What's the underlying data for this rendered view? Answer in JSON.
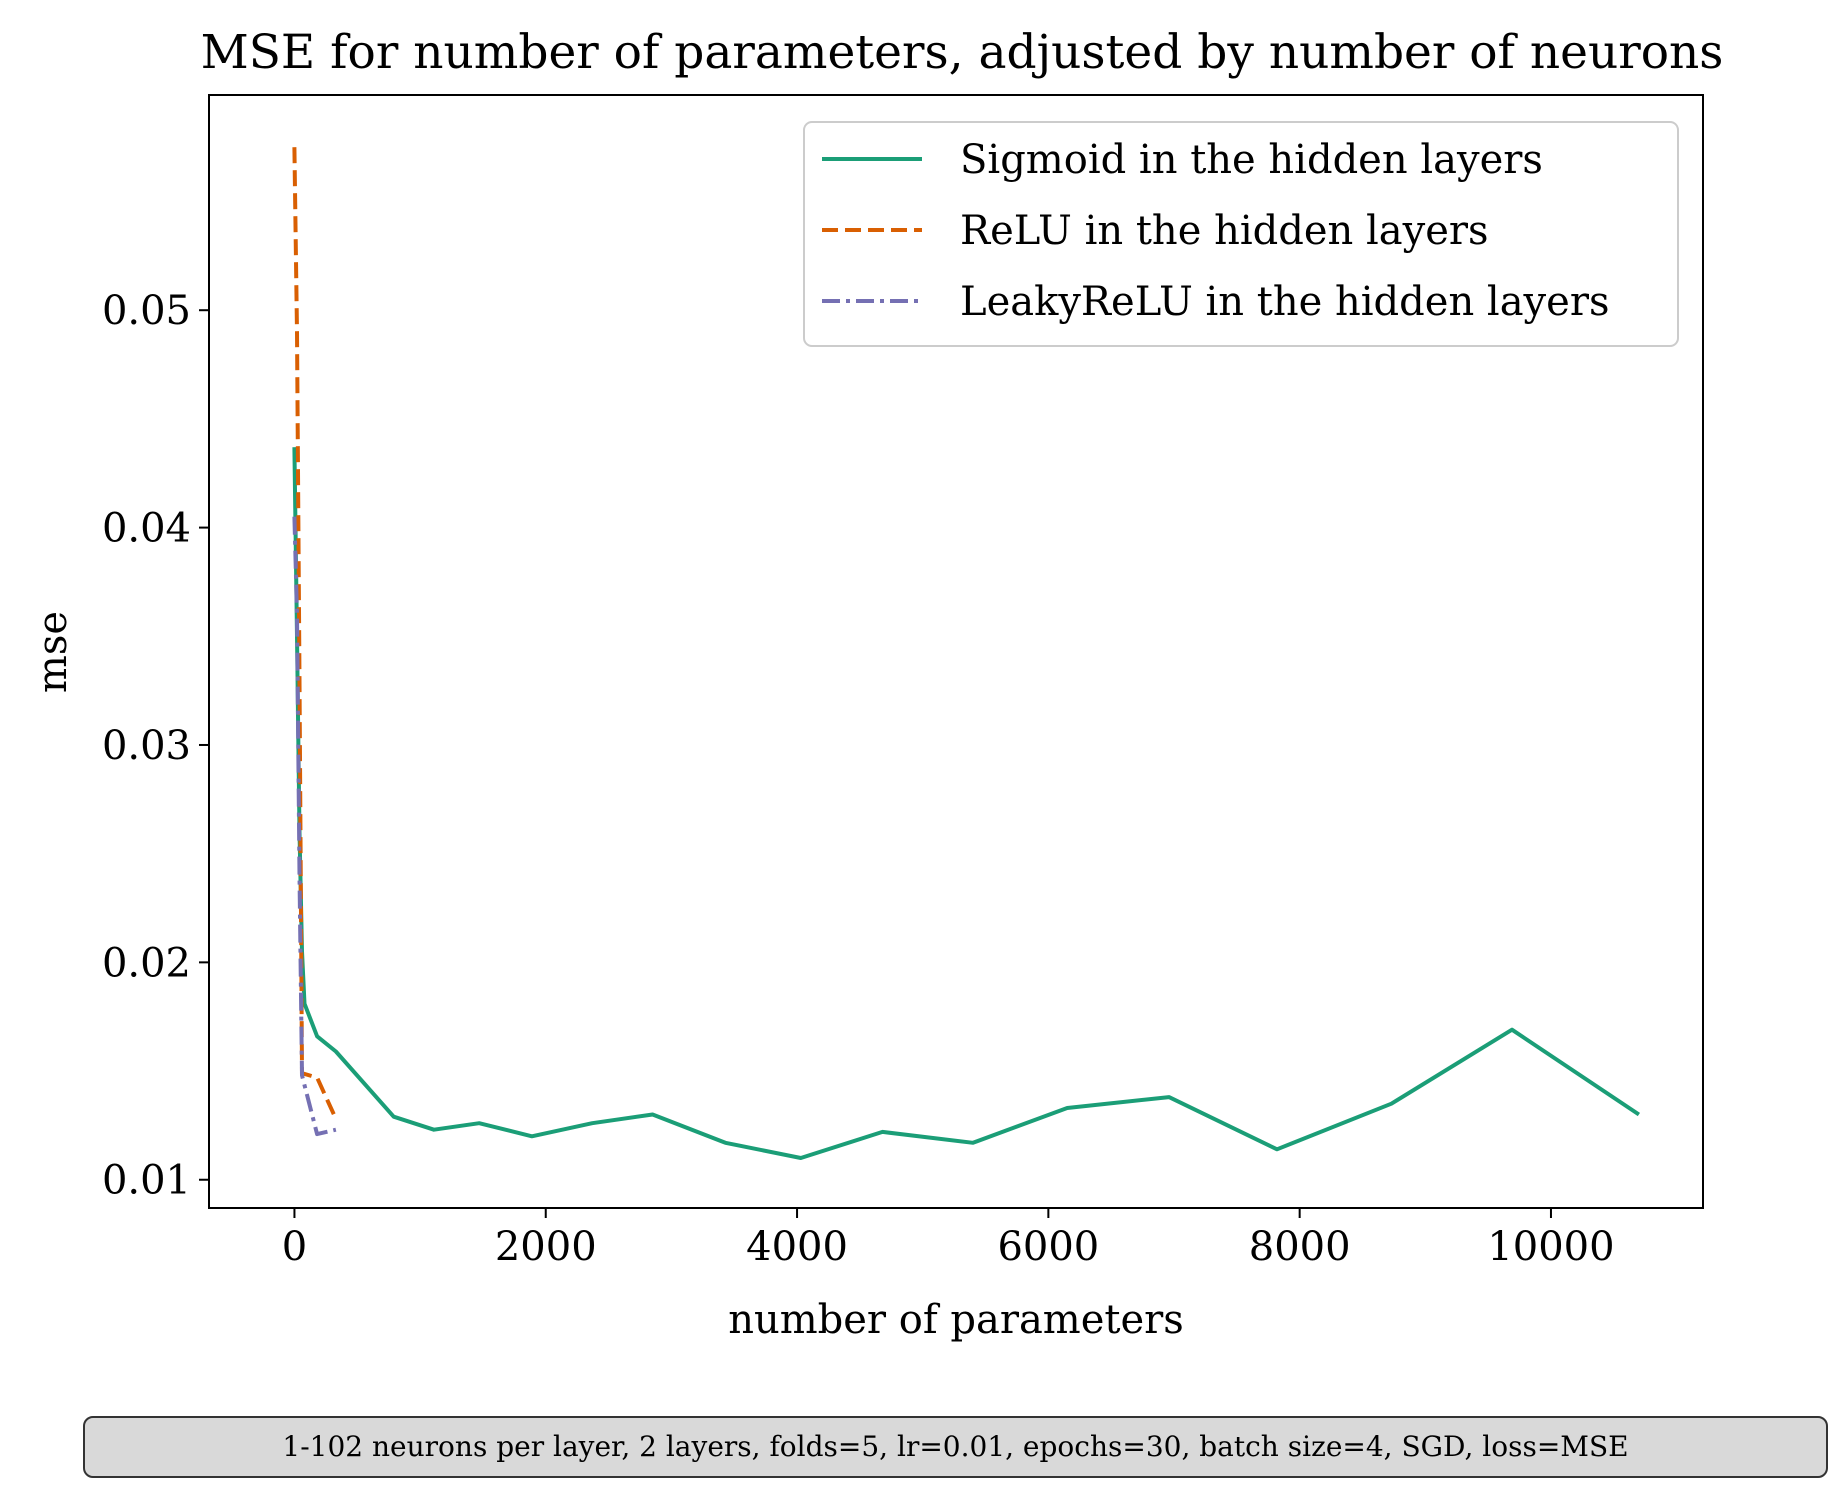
{
  "chart_data": {
    "type": "line",
    "title": "MSE for number of parameters, adjusted by number of neurons",
    "xlabel": "number of parameters",
    "ylabel": "mse",
    "xlim": [
      -680,
      11210
    ],
    "ylim": [
      0.0087,
      0.0599
    ],
    "xticks": [
      0,
      2000,
      4000,
      6000,
      8000,
      10000
    ],
    "xtick_labels": [
      "0",
      "2000",
      "4000",
      "6000",
      "8000",
      "10000"
    ],
    "yticks": [
      0.01,
      0.02,
      0.03,
      0.04,
      0.05
    ],
    "ytick_labels": [
      "0.01",
      "0.02",
      "0.03",
      "0.04",
      "0.05"
    ],
    "grid": false,
    "legend_position": "upper right",
    "series": [
      {
        "name": "Sigmoid in the hidden layers",
        "color": "#1b9e77",
        "style": "solid",
        "x": [
          0,
          20,
          40,
          60,
          80,
          180,
          330,
          790,
          1110,
          1470,
          1890,
          2370,
          2850,
          3430,
          4030,
          4680,
          5400,
          6150,
          6960,
          7820,
          8730,
          9690,
          10700
        ],
        "y": [
          0.0437,
          0.035,
          0.026,
          0.0205,
          0.0181,
          0.0166,
          0.0159,
          0.0129,
          0.0123,
          0.0126,
          0.012,
          0.0126,
          0.013,
          0.0117,
          0.011,
          0.0122,
          0.0117,
          0.0133,
          0.0138,
          0.0114,
          0.0135,
          0.0169,
          0.013
        ]
      },
      {
        "name": "ReLU in the hidden layers",
        "color": "#d95f02",
        "style": "dashed",
        "x": [
          0,
          20,
          40,
          60,
          180,
          330
        ],
        "y": [
          0.0575,
          0.049,
          0.033,
          0.0149,
          0.0147,
          0.0128
        ]
      },
      {
        "name": "LeakyReLU in the hidden layers",
        "color": "#7570b3",
        "style": "dashdot",
        "x": [
          0,
          20,
          40,
          60,
          180,
          330
        ],
        "y": [
          0.0405,
          0.036,
          0.024,
          0.0148,
          0.0121,
          0.0123
        ]
      }
    ]
  },
  "caption": "1-102 neurons per layer, 2 layers, folds=5, lr=0.01, epochs=30, batch size=4, SGD, loss=MSE"
}
